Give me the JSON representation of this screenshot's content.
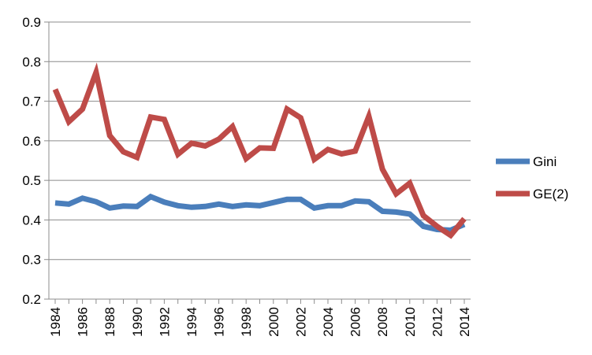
{
  "chart_data": {
    "type": "line",
    "title": "",
    "xlabel": "",
    "ylabel": "",
    "ylim": [
      0.2,
      0.9
    ],
    "yticks": [
      "0.2",
      "0.3",
      "0.4",
      "0.5",
      "0.6",
      "0.7",
      "0.8",
      "0.9"
    ],
    "x": [
      1984,
      1985,
      1986,
      1987,
      1988,
      1989,
      1990,
      1991,
      1992,
      1993,
      1994,
      1995,
      1996,
      1997,
      1998,
      1999,
      2000,
      2001,
      2002,
      2003,
      2004,
      2005,
      2006,
      2007,
      2008,
      2009,
      2010,
      2011,
      2012,
      2013,
      2014
    ],
    "xticks": [
      "1984",
      "1986",
      "1988",
      "1990",
      "1992",
      "1994",
      "1996",
      "1998",
      "2000",
      "2002",
      "2004",
      "2006",
      "2008",
      "2010",
      "2012",
      "2014"
    ],
    "grid": "horizontal",
    "legend": "right",
    "series": [
      {
        "name": "Gini",
        "color": "#4a7ebb",
        "values": [
          0.443,
          0.44,
          0.455,
          0.446,
          0.43,
          0.435,
          0.434,
          0.459,
          0.445,
          0.436,
          0.432,
          0.434,
          0.44,
          0.434,
          0.438,
          0.436,
          0.444,
          0.452,
          0.452,
          0.43,
          0.436,
          0.436,
          0.448,
          0.446,
          0.422,
          0.42,
          0.415,
          0.384,
          0.376,
          0.374,
          0.389
        ]
      },
      {
        "name": "GE(2)",
        "color": "#be4b48",
        "values": [
          0.73,
          0.648,
          0.68,
          0.773,
          0.613,
          0.572,
          0.558,
          0.66,
          0.654,
          0.566,
          0.594,
          0.587,
          0.604,
          0.636,
          0.555,
          0.582,
          0.581,
          0.68,
          0.658,
          0.553,
          0.578,
          0.567,
          0.574,
          0.662,
          0.528,
          0.466,
          0.493,
          0.411,
          0.384,
          0.361,
          0.403
        ]
      }
    ]
  }
}
